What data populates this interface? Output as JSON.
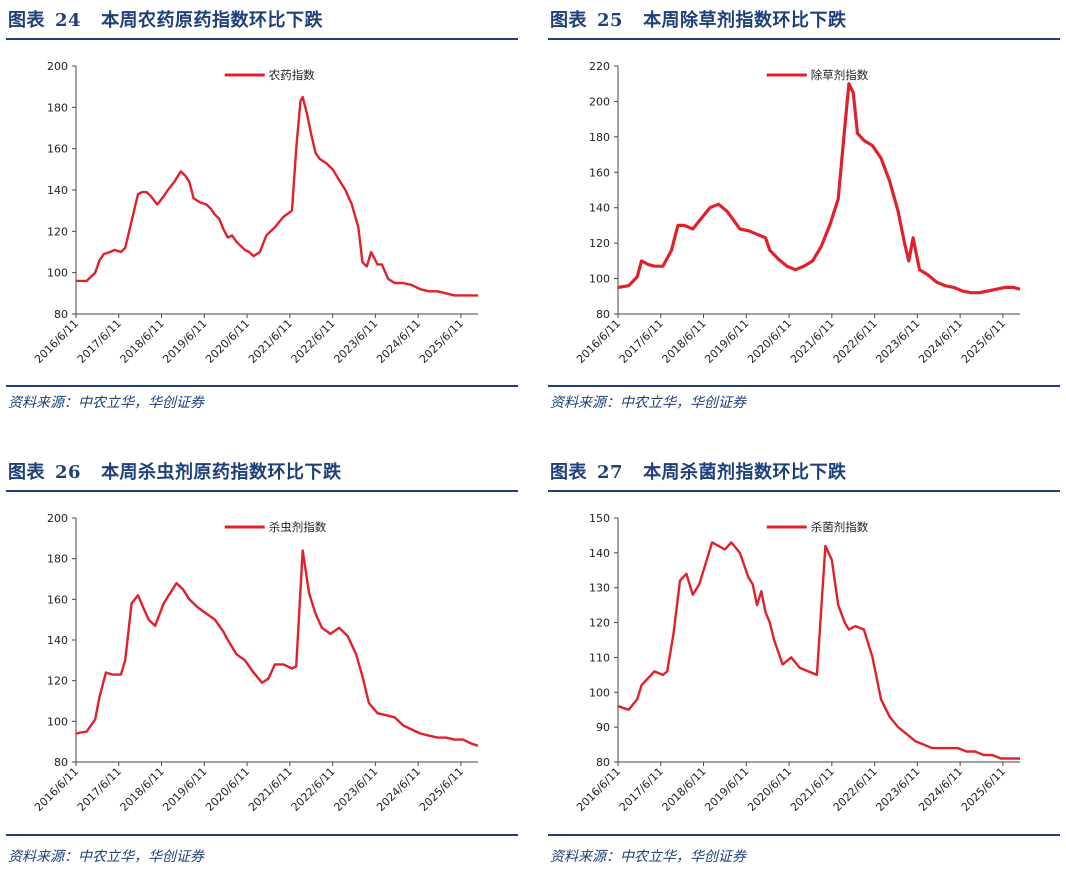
{
  "source_text": "资料来源：中农立华，华创证券",
  "chart_data": [
    {
      "type": "line",
      "fig_label": "图表",
      "fig_num": "24",
      "title": "本周农药原药指数环比下跌",
      "legend": "农药指数",
      "ylim": [
        80,
        200
      ],
      "yticks": [
        80,
        100,
        120,
        140,
        160,
        180,
        200
      ],
      "xtick_labels": [
        "2016/6/11",
        "2017/6/11",
        "2018/6/11",
        "2019/6/11",
        "2020/6/11",
        "2021/6/11",
        "2022/6/11",
        "2023/6/11",
        "2024/6/11",
        "2025/6/11"
      ],
      "color": "#e0212b",
      "x": [
        2016.45,
        2016.7,
        2016.9,
        2017.0,
        2017.1,
        2017.25,
        2017.35,
        2017.5,
        2017.6,
        2017.75,
        2017.9,
        2018.0,
        2018.1,
        2018.2,
        2018.35,
        2018.5,
        2018.6,
        2018.75,
        2018.9,
        2019.0,
        2019.1,
        2019.2,
        2019.35,
        2019.5,
        2019.6,
        2019.7,
        2019.8,
        2019.9,
        2020.0,
        2020.1,
        2020.2,
        2020.3,
        2020.4,
        2020.5,
        2020.6,
        2020.75,
        2020.9,
        2021.0,
        2021.1,
        2021.3,
        2021.5,
        2021.6,
        2021.7,
        2021.75,
        2021.85,
        2021.95,
        2022.05,
        2022.15,
        2022.3,
        2022.45,
        2022.6,
        2022.75,
        2022.9,
        2023.05,
        2023.15,
        2023.25,
        2023.35,
        2023.5,
        2023.6,
        2023.75,
        2023.9,
        2024.1,
        2024.3,
        2024.5,
        2024.7,
        2024.9,
        2025.1,
        2025.3,
        2025.5,
        2025.7,
        2025.85
      ],
      "y": [
        96,
        96,
        100,
        106,
        109,
        110,
        111,
        110,
        112,
        125,
        138,
        139,
        139,
        137,
        133,
        137,
        140,
        144,
        149,
        147,
        144,
        136,
        134,
        133,
        131,
        128,
        126,
        121,
        117,
        118,
        115,
        113,
        111,
        110,
        108,
        110,
        118,
        120,
        122,
        127,
        130,
        160,
        183,
        185,
        177,
        167,
        158,
        155,
        153,
        150,
        145,
        140,
        133,
        122,
        105,
        103,
        110,
        104,
        104,
        97,
        95,
        95,
        94,
        92,
        91,
        91,
        90,
        89,
        89,
        89,
        89
      ]
    },
    {
      "type": "line",
      "fig_label": "图表",
      "fig_num": "25",
      "title": "本周除草剂指数环比下跌",
      "legend": "除草剂指数",
      "ylim": [
        80,
        220
      ],
      "yticks": [
        80,
        100,
        120,
        140,
        160,
        180,
        200,
        220
      ],
      "xtick_labels": [
        "2016/6/11",
        "2017/6/11",
        "2018/6/11",
        "2019/6/11",
        "2020/6/11",
        "2021/6/11",
        "2022/6/11",
        "2023/6/11",
        "2024/6/11",
        "2025/6/11"
      ],
      "color": "#e0212b",
      "x": [
        2016.45,
        2016.7,
        2016.9,
        2017.0,
        2017.15,
        2017.3,
        2017.5,
        2017.7,
        2017.85,
        2018.0,
        2018.2,
        2018.4,
        2018.6,
        2018.8,
        2019.0,
        2019.15,
        2019.3,
        2019.5,
        2019.7,
        2019.9,
        2020.0,
        2020.2,
        2020.4,
        2020.6,
        2020.8,
        2021.0,
        2021.2,
        2021.4,
        2021.6,
        2021.75,
        2021.85,
        2021.95,
        2022.05,
        2022.2,
        2022.4,
        2022.6,
        2022.8,
        2023.0,
        2023.15,
        2023.25,
        2023.35,
        2023.5,
        2023.7,
        2023.9,
        2024.1,
        2024.3,
        2024.5,
        2024.7,
        2024.9,
        2025.1,
        2025.3,
        2025.5,
        2025.7,
        2025.85
      ],
      "y": [
        95,
        96,
        101,
        110,
        108,
        107,
        107,
        116,
        130,
        130,
        128,
        134,
        140,
        142,
        138,
        133,
        128,
        127,
        125,
        123,
        116,
        111,
        107,
        105,
        107,
        110,
        118,
        130,
        145,
        185,
        210,
        205,
        182,
        178,
        175,
        168,
        155,
        138,
        120,
        110,
        123,
        105,
        102,
        98,
        96,
        95,
        93,
        92,
        92,
        93,
        94,
        95,
        95,
        94
      ]
    },
    {
      "type": "line",
      "fig_label": "图表",
      "fig_num": "26",
      "title": "本周杀虫剂原药指数环比下跌",
      "legend": "杀虫剂指数",
      "ylim": [
        80,
        200
      ],
      "yticks": [
        80,
        100,
        120,
        140,
        160,
        180,
        200
      ],
      "xtick_labels": [
        "2016/6/11",
        "2017/6/11",
        "2018/6/11",
        "2019/6/11",
        "2020/6/11",
        "2021/6/11",
        "2022/6/11",
        "2023/6/11",
        "2024/6/11",
        "2025/6/11"
      ],
      "color": "#e0212b",
      "x": [
        2016.45,
        2016.7,
        2016.9,
        2017.0,
        2017.15,
        2017.3,
        2017.5,
        2017.6,
        2017.75,
        2017.9,
        2018.0,
        2018.15,
        2018.3,
        2018.5,
        2018.65,
        2018.8,
        2018.95,
        2019.1,
        2019.3,
        2019.5,
        2019.7,
        2019.9,
        2020.0,
        2020.2,
        2020.4,
        2020.6,
        2020.8,
        2020.95,
        2021.1,
        2021.3,
        2021.5,
        2021.6,
        2021.75,
        2021.9,
        2022.05,
        2022.2,
        2022.4,
        2022.6,
        2022.8,
        2023.0,
        2023.15,
        2023.3,
        2023.5,
        2023.7,
        2023.9,
        2024.1,
        2024.3,
        2024.5,
        2024.7,
        2024.9,
        2025.1,
        2025.3,
        2025.5,
        2025.7,
        2025.85
      ],
      "y": [
        94,
        95,
        101,
        112,
        124,
        123,
        123,
        130,
        158,
        162,
        157,
        150,
        147,
        158,
        163,
        168,
        165,
        160,
        156,
        153,
        150,
        144,
        140,
        133,
        130,
        124,
        119,
        121,
        128,
        128,
        126,
        127,
        184,
        163,
        153,
        146,
        143,
        146,
        142,
        133,
        122,
        109,
        104,
        103,
        102,
        98,
        96,
        94,
        93,
        92,
        92,
        91,
        91,
        89,
        88
      ]
    },
    {
      "type": "line",
      "fig_label": "图表",
      "fig_num": "27",
      "title": "本周杀菌剂指数环比下跌",
      "legend": "杀菌剂指数",
      "ylim": [
        80,
        150
      ],
      "yticks": [
        80,
        90,
        100,
        110,
        120,
        130,
        140,
        150
      ],
      "xtick_labels": [
        "2016/6/11",
        "2017/6/11",
        "2018/6/11",
        "2019/6/11",
        "2020/6/11",
        "2021/6/11",
        "2022/6/11",
        "2023/6/11",
        "2024/6/11",
        "2025/6/11"
      ],
      "color": "#e0212b",
      "x": [
        2016.45,
        2016.7,
        2016.9,
        2017.0,
        2017.15,
        2017.3,
        2017.5,
        2017.6,
        2017.75,
        2017.9,
        2018.05,
        2018.2,
        2018.35,
        2018.5,
        2018.65,
        2018.8,
        2018.95,
        2019.1,
        2019.3,
        2019.5,
        2019.6,
        2019.7,
        2019.8,
        2019.9,
        2020.0,
        2020.1,
        2020.3,
        2020.5,
        2020.7,
        2020.9,
        2021.1,
        2021.3,
        2021.45,
        2021.6,
        2021.75,
        2021.85,
        2022.0,
        2022.2,
        2022.4,
        2022.6,
        2022.8,
        2023.0,
        2023.2,
        2023.4,
        2023.6,
        2023.8,
        2024.0,
        2024.2,
        2024.4,
        2024.6,
        2024.8,
        2025.0,
        2025.2,
        2025.4,
        2025.55,
        2025.7,
        2025.85
      ],
      "y": [
        96,
        95,
        98,
        102,
        104,
        106,
        105,
        106,
        117,
        132,
        134,
        128,
        131,
        137,
        143,
        142,
        141,
        143,
        140,
        133,
        131,
        125,
        129,
        123,
        120,
        115,
        108,
        110,
        107,
        106,
        105,
        142,
        138,
        125,
        120,
        118,
        119,
        118,
        110,
        98,
        93,
        90,
        88,
        86,
        85,
        84,
        84,
        84,
        84,
        83,
        83,
        82,
        82,
        81,
        81,
        81,
        81
      ]
    }
  ]
}
